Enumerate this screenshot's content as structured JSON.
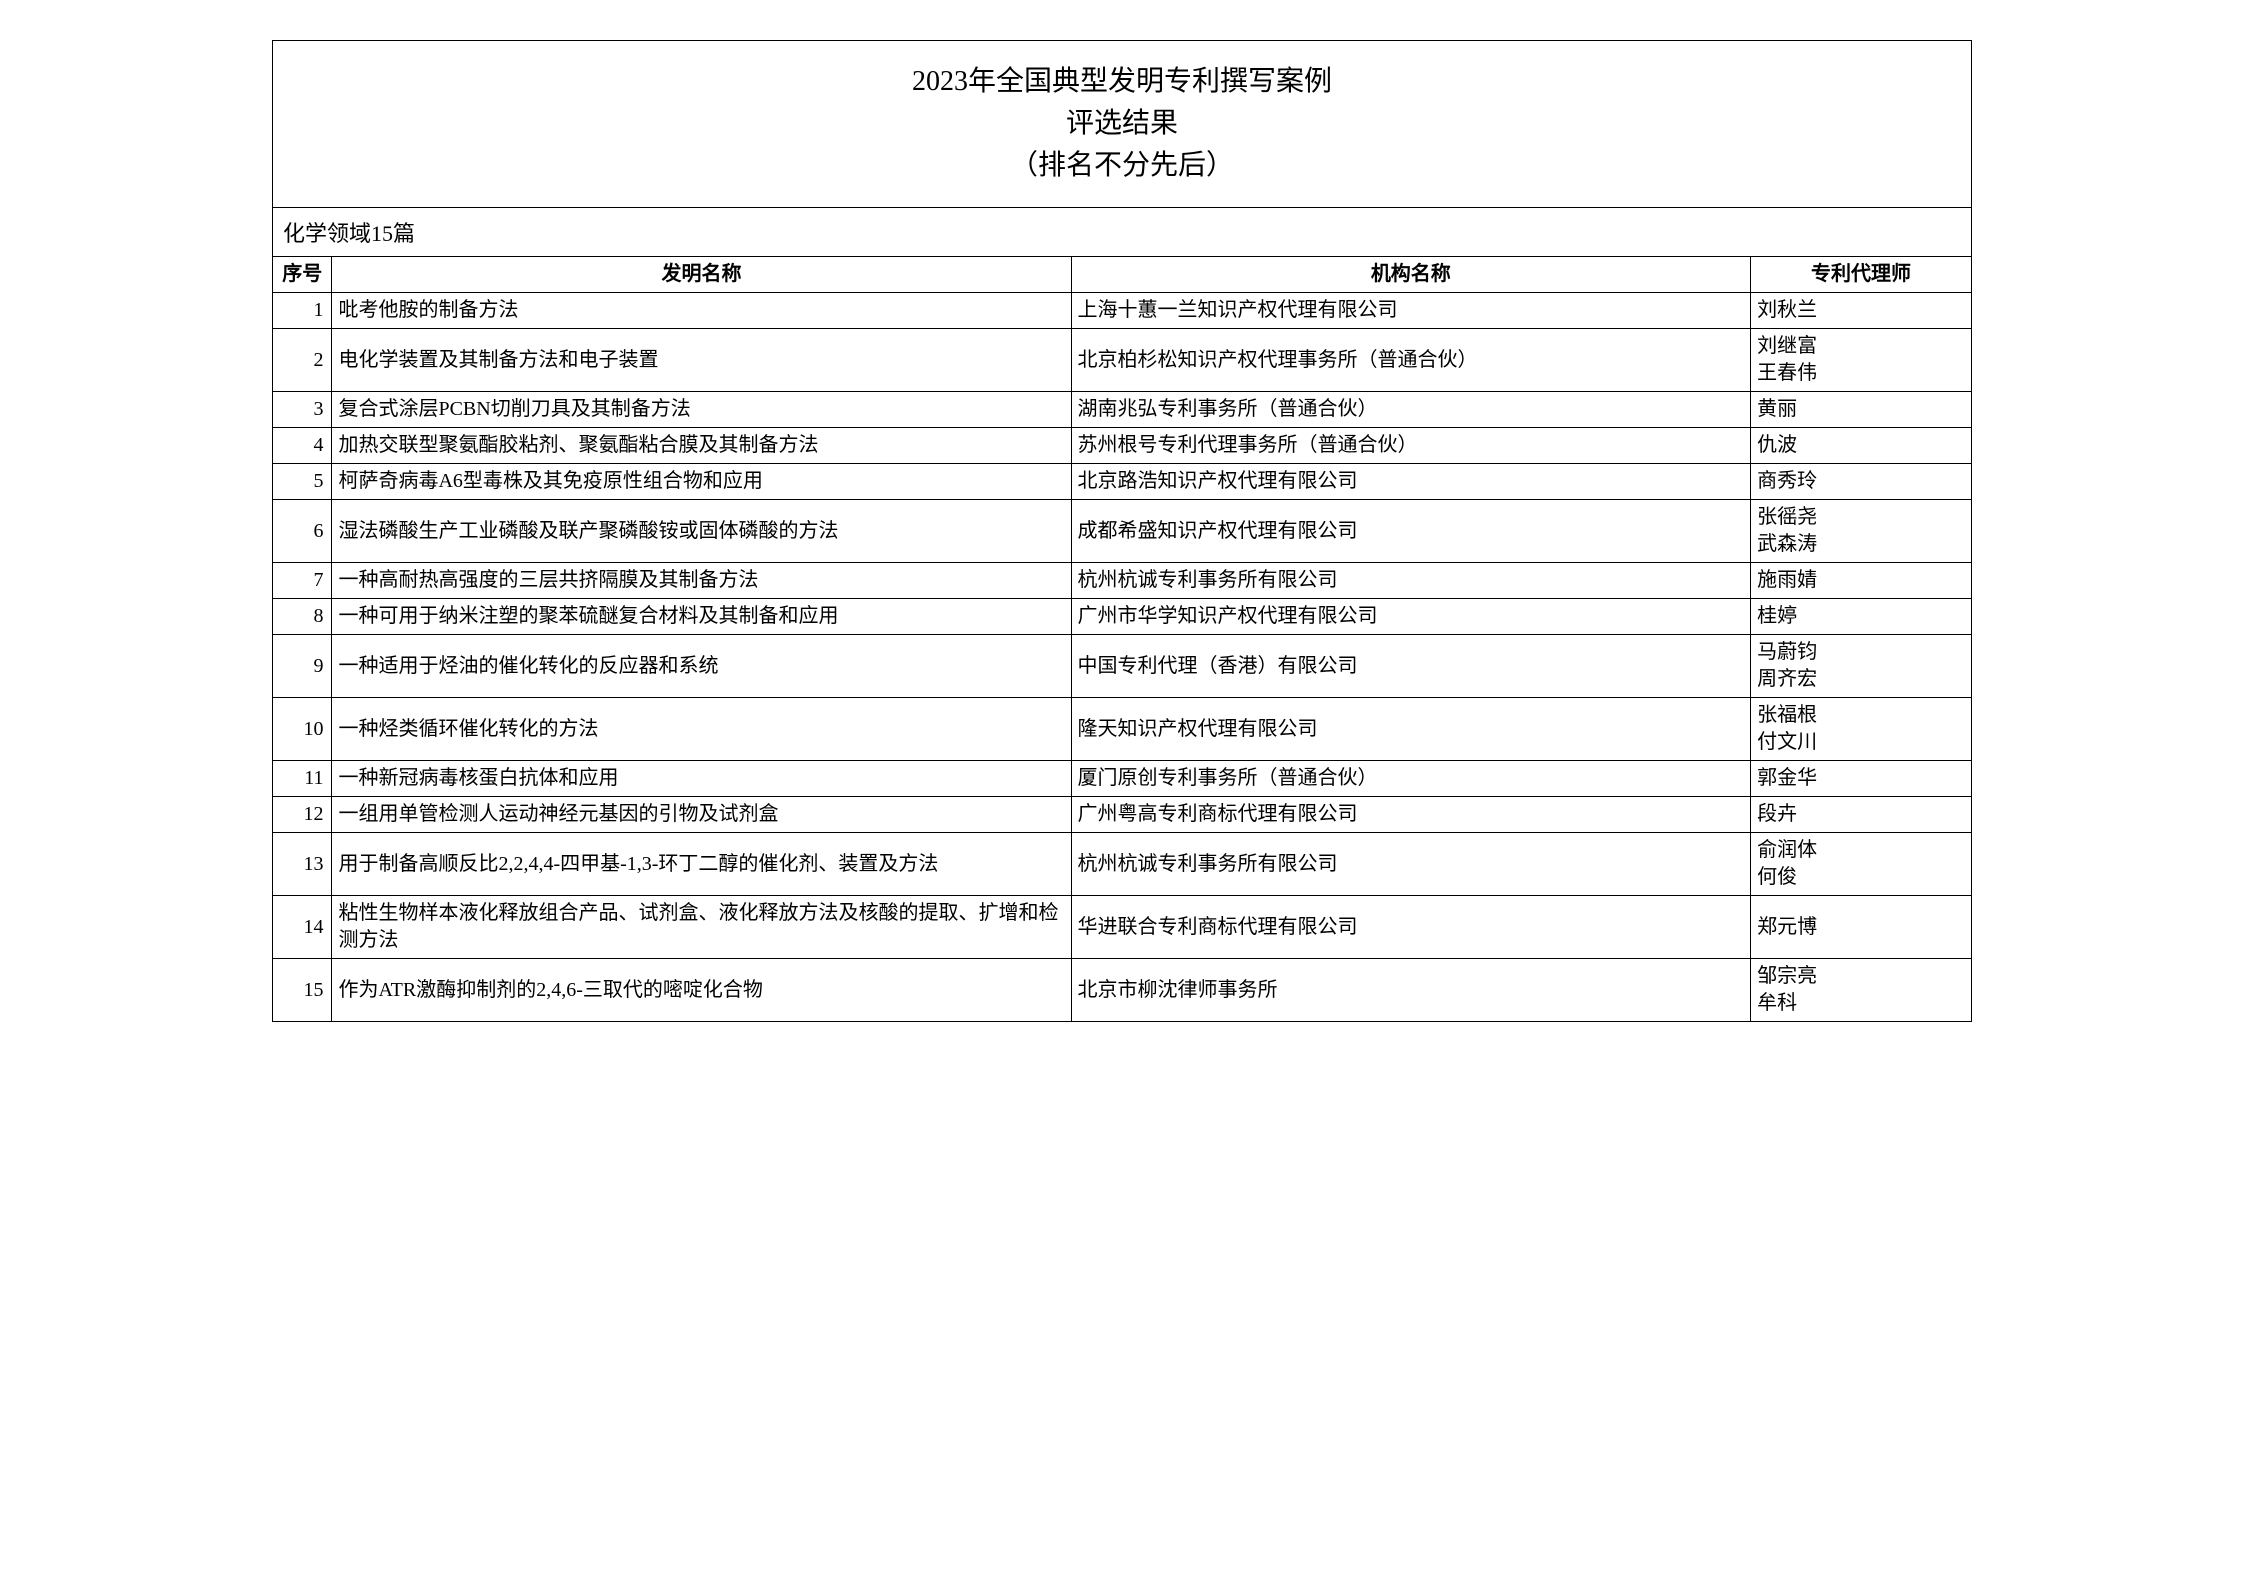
{
  "title": {
    "line1": "2023年全国典型发明专利撰写案例",
    "line2": "评选结果",
    "line3": "（排名不分先后）"
  },
  "section_label": "化学领域15篇",
  "columns": {
    "seq": "序号",
    "invention_name": "发明名称",
    "org_name": "机构名称",
    "agents": "专利代理师"
  },
  "rows": [
    {
      "seq": "1",
      "name": "吡考他胺的制备方法",
      "org": "上海十蕙一兰知识产权代理有限公司",
      "agents": [
        "刘秋兰"
      ]
    },
    {
      "seq": "2",
      "name": "电化学装置及其制备方法和电子装置",
      "org": "北京柏杉松知识产权代理事务所（普通合伙）",
      "agents": [
        "刘继富",
        "王春伟"
      ]
    },
    {
      "seq": "3",
      "name": "复合式涂层PCBN切削刀具及其制备方法",
      "org": "湖南兆弘专利事务所（普通合伙）",
      "agents": [
        "黄丽"
      ]
    },
    {
      "seq": "4",
      "name": "加热交联型聚氨酯胶粘剂、聚氨酯粘合膜及其制备方法",
      "org": "苏州根号专利代理事务所（普通合伙）",
      "agents": [
        "仇波"
      ]
    },
    {
      "seq": "5",
      "name": "柯萨奇病毒A6型毒株及其免疫原性组合物和应用",
      "org": "北京路浩知识产权代理有限公司",
      "agents": [
        "商秀玲"
      ]
    },
    {
      "seq": "6",
      "name": "湿法磷酸生产工业磷酸及联产聚磷酸铵或固体磷酸的方法",
      "org": "成都希盛知识产权代理有限公司",
      "agents": [
        "张徭尧",
        "武森涛"
      ]
    },
    {
      "seq": "7",
      "name": "一种高耐热高强度的三层共挤隔膜及其制备方法",
      "org": "杭州杭诚专利事务所有限公司",
      "agents": [
        "施雨婧"
      ]
    },
    {
      "seq": "8",
      "name": "一种可用于纳米注塑的聚苯硫醚复合材料及其制备和应用",
      "org": "广州市华学知识产权代理有限公司",
      "agents": [
        "桂婷"
      ]
    },
    {
      "seq": "9",
      "name": "一种适用于烃油的催化转化的反应器和系统",
      "org": "中国专利代理（香港）有限公司",
      "agents": [
        "马蔚钧",
        "周齐宏"
      ]
    },
    {
      "seq": "10",
      "name": "一种烃类循环催化转化的方法",
      "org": "隆天知识产权代理有限公司",
      "agents": [
        "张福根",
        "付文川"
      ]
    },
    {
      "seq": "11",
      "name": "一种新冠病毒核蛋白抗体和应用",
      "org": "厦门原创专利事务所（普通合伙）",
      "agents": [
        "郭金华"
      ]
    },
    {
      "seq": "12",
      "name": "一组用单管检测人运动神经元基因的引物及试剂盒",
      "org": "广州粤高专利商标代理有限公司",
      "agents": [
        "段卉"
      ]
    },
    {
      "seq": "13",
      "name": "用于制备高顺反比2,2,4,4-四甲基-1,3-环丁二醇的催化剂、装置及方法",
      "org": "杭州杭诚专利事务所有限公司",
      "agents": [
        "俞润体",
        "何俊"
      ]
    },
    {
      "seq": "14",
      "name": "粘性生物样本液化释放组合产品、试剂盒、液化释放方法及核酸的提取、扩增和检测方法",
      "org": "华进联合专利商标代理有限公司",
      "agents": [
        "郑元博"
      ]
    },
    {
      "seq": "15",
      "name": "作为ATR激酶抑制剂的2,4,6-三取代的嘧啶化合物",
      "org": "北京市柳沈律师事务所",
      "agents": [
        "邹宗亮",
        "牟科"
      ]
    }
  ],
  "style": {
    "font_family": "SimSun",
    "title_fontsize": 28,
    "cell_fontsize": 20,
    "border_color": "#000000",
    "text_color": "#000000",
    "background_color": "#ffffff"
  }
}
